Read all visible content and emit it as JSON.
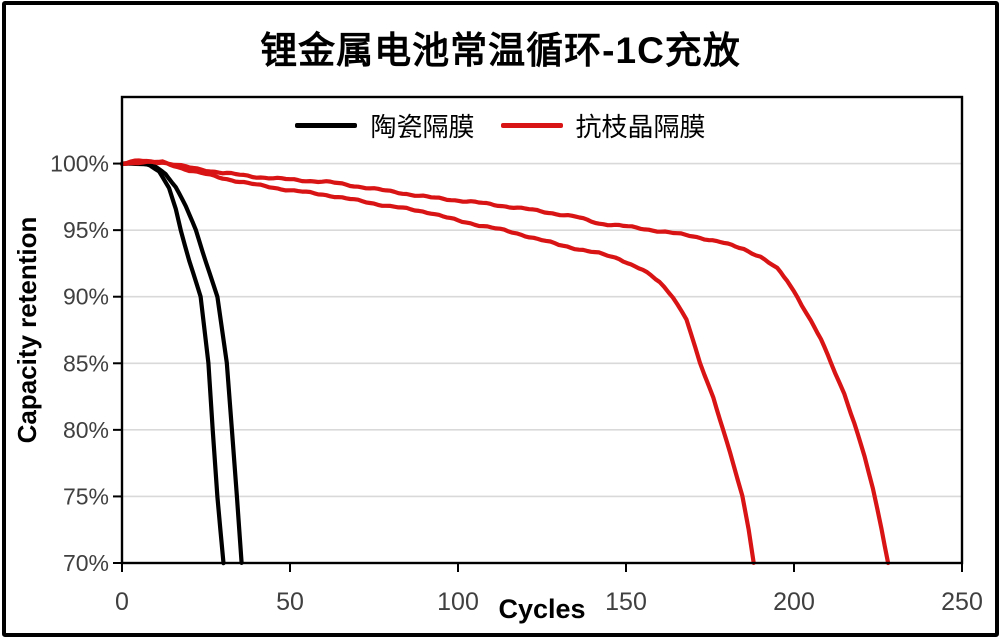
{
  "title": "锂金属电池常温循环-1C充放",
  "legend": [
    {
      "label": "陶瓷隔膜",
      "color": "#000000"
    },
    {
      "label": "抗枝晶隔膜",
      "color": "#d91414"
    }
  ],
  "axis": {
    "x_title": "Cycles",
    "y_title": "Capacity retention",
    "x_tick_labels": [
      "0",
      "50",
      "100",
      "150",
      "200",
      "250"
    ],
    "y_tick_labels": [
      "70%",
      "75%",
      "80%",
      "85%",
      "90%",
      "95%",
      "100%"
    ]
  },
  "colors": {
    "grid": "#d9d9d9",
    "axis": "#000000",
    "background": "#ffffff",
    "tick_text": "#404040",
    "ceramic": "#000000",
    "anti_dendrite": "#d91414"
  },
  "chart_data": {
    "type": "line",
    "title": "锂金属电池常温循环-1C充放",
    "xlabel": "Cycles",
    "ylabel": "Capacity retention",
    "xlim": [
      0,
      250
    ],
    "ylim": [
      70,
      105
    ],
    "x_ticks": [
      0,
      50,
      100,
      150,
      200,
      250
    ],
    "y_ticks": [
      70,
      75,
      80,
      85,
      90,
      95,
      100
    ],
    "grid": "horizontal-only",
    "legend_position": "top-center-inside",
    "series": [
      {
        "name": "陶瓷隔膜 cell 1",
        "legend": "陶瓷隔膜",
        "color": "#000000",
        "points": [
          [
            0,
            100
          ],
          [
            4,
            100
          ],
          [
            8,
            99.9
          ],
          [
            11,
            99.4
          ],
          [
            14,
            98.2
          ],
          [
            16,
            96.6
          ],
          [
            17.5,
            95
          ],
          [
            20,
            92.7
          ],
          [
            23.4,
            90
          ],
          [
            25.7,
            85
          ],
          [
            27,
            80
          ],
          [
            28.4,
            75
          ],
          [
            29.3,
            72.5
          ],
          [
            30.2,
            70
          ]
        ]
      },
      {
        "name": "陶瓷隔膜 cell 2",
        "legend": "陶瓷隔膜",
        "color": "#000000",
        "points": [
          [
            0,
            100
          ],
          [
            6,
            100
          ],
          [
            10,
            99.8
          ],
          [
            13,
            99.2
          ],
          [
            16,
            98.2
          ],
          [
            19,
            96.8
          ],
          [
            22,
            95
          ],
          [
            25,
            92.6
          ],
          [
            28.4,
            90
          ],
          [
            31.2,
            85
          ],
          [
            32.7,
            80
          ],
          [
            34.2,
            75
          ],
          [
            35.6,
            70
          ]
        ]
      },
      {
        "name": "抗枝晶隔膜 cell 1",
        "legend": "抗枝晶隔膜",
        "color": "#d91414",
        "points": [
          [
            0,
            100
          ],
          [
            5,
            100.1
          ],
          [
            12,
            100.1
          ],
          [
            20,
            99.5
          ],
          [
            30,
            98.9
          ],
          [
            40,
            98.4
          ],
          [
            50,
            98.0
          ],
          [
            62,
            97.6
          ],
          [
            75,
            97.0
          ],
          [
            92,
            96.3
          ],
          [
            100,
            95.7
          ],
          [
            110,
            95.2
          ],
          [
            120,
            94.6
          ],
          [
            130,
            93.9
          ],
          [
            142,
            93.25
          ],
          [
            148,
            92.85
          ],
          [
            155,
            92.0
          ],
          [
            160,
            91.1
          ],
          [
            164,
            90
          ],
          [
            168,
            88.3
          ],
          [
            172,
            85
          ],
          [
            176,
            82.4
          ],
          [
            179,
            80
          ],
          [
            182,
            77.4
          ],
          [
            184.6,
            75
          ],
          [
            186.5,
            72.5
          ],
          [
            188,
            70
          ]
        ]
      },
      {
        "name": "抗枝晶隔膜 cell 2",
        "legend": "抗枝晶隔膜",
        "color": "#d91414",
        "points": [
          [
            0,
            100
          ],
          [
            5,
            100.2
          ],
          [
            12,
            100.1
          ],
          [
            20,
            99.7
          ],
          [
            30,
            99.3
          ],
          [
            40,
            99.0
          ],
          [
            50,
            98.8
          ],
          [
            62,
            98.6
          ],
          [
            75,
            98.1
          ],
          [
            92,
            97.45
          ],
          [
            105,
            97.1
          ],
          [
            120,
            96.6
          ],
          [
            135,
            96.0
          ],
          [
            142,
            95.5
          ],
          [
            148,
            95.35
          ],
          [
            158,
            95.0
          ],
          [
            170,
            94.55
          ],
          [
            178,
            94.1
          ],
          [
            185,
            93.6
          ],
          [
            190,
            93.0
          ],
          [
            195,
            92.1
          ],
          [
            198,
            91.2
          ],
          [
            201,
            90
          ],
          [
            205,
            88.2
          ],
          [
            208,
            86.8
          ],
          [
            211,
            85
          ],
          [
            215,
            82.7
          ],
          [
            218,
            80.5
          ],
          [
            221,
            78
          ],
          [
            223.5,
            75.5
          ],
          [
            226,
            72.6
          ],
          [
            228,
            70
          ]
        ]
      }
    ]
  }
}
